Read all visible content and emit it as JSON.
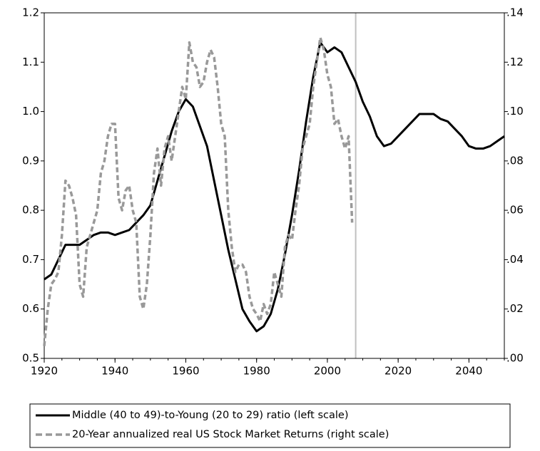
{
  "chart_data": {
    "type": "line",
    "xlim": [
      1920,
      2050
    ],
    "xticks": [
      1920,
      1940,
      1960,
      1980,
      2000,
      2020,
      2040
    ],
    "ylim": [
      0.5,
      1.2
    ],
    "yticks": [
      0.5,
      0.6,
      0.7,
      0.8,
      0.9,
      {
        "value": 1,
        "label": "1.0"
      },
      1.1,
      1.2
    ],
    "y2lim": [
      0,
      0.14
    ],
    "y2ticks": [
      {
        "value": 0,
        "label": ".00"
      },
      {
        "value": 0.02,
        "label": ".02"
      },
      {
        "value": 0.04,
        "label": ".04"
      },
      {
        "value": 0.06,
        "label": ".06"
      },
      {
        "value": 0.08,
        "label": ".08"
      },
      {
        "value": 0.1,
        "label": ".10"
      },
      {
        "value": 0.12,
        "label": ".12"
      },
      {
        "value": 0.14,
        "label": ".14"
      }
    ],
    "vline_x": 2008,
    "vline_color": "#c0c0c0",
    "series": [
      {
        "name": "Middle (40 to 49)-to-Young (20 to 29) ratio (left scale)",
        "color": "#000000",
        "dashed": false,
        "x": [
          1920,
          1922,
          1924,
          1926,
          1928,
          1930,
          1932,
          1934,
          1936,
          1938,
          1940,
          1942,
          1944,
          1946,
          1948,
          1950,
          1952,
          1954,
          1956,
          1958,
          1960,
          1962,
          1964,
          1966,
          1968,
          1970,
          1972,
          1974,
          1976,
          1978,
          1980,
          1982,
          1984,
          1986,
          1988,
          1990,
          1992,
          1994,
          1996,
          1998,
          2000,
          2002,
          2004,
          2006,
          2008,
          2010,
          2012,
          2014,
          2016,
          2018,
          2020,
          2022,
          2024,
          2026,
          2028,
          2030,
          2032,
          2034,
          2036,
          2038,
          2040,
          2042,
          2044,
          2046,
          2048,
          2050
        ],
        "values": [
          0.66,
          0.67,
          0.7,
          0.73,
          0.73,
          0.73,
          0.74,
          0.75,
          0.755,
          0.755,
          0.75,
          0.755,
          0.76,
          0.775,
          0.79,
          0.81,
          0.86,
          0.91,
          0.96,
          1.0,
          1.025,
          1.01,
          0.97,
          0.93,
          0.86,
          0.79,
          0.72,
          0.66,
          0.6,
          0.575,
          0.555,
          0.565,
          0.59,
          0.64,
          0.71,
          0.79,
          0.88,
          0.98,
          1.07,
          1.14,
          1.12,
          1.13,
          1.12,
          1.09,
          1.06,
          1.02,
          0.99,
          0.95,
          0.93,
          0.935,
          0.95,
          0.965,
          0.98,
          0.995,
          0.995,
          0.995,
          0.985,
          0.98,
          0.965,
          0.95,
          0.93,
          0.925,
          0.925,
          0.93,
          0.94,
          0.95
        ]
      },
      {
        "name": "20-Year annualized real US Stock Market Returns (right scale)",
        "color": "#999999",
        "dashed": true,
        "axis": "y2",
        "x": [
          1920,
          1921,
          1922,
          1923,
          1924,
          1925,
          1926,
          1927,
          1928,
          1929,
          1930,
          1931,
          1932,
          1933,
          1934,
          1935,
          1936,
          1937,
          1938,
          1939,
          1940,
          1941,
          1942,
          1943,
          1944,
          1945,
          1946,
          1947,
          1948,
          1949,
          1950,
          1951,
          1952,
          1953,
          1954,
          1955,
          1956,
          1957,
          1958,
          1959,
          1960,
          1961,
          1962,
          1963,
          1964,
          1965,
          1966,
          1967,
          1968,
          1969,
          1970,
          1971,
          1972,
          1973,
          1974,
          1975,
          1976,
          1977,
          1978,
          1979,
          1980,
          1981,
          1982,
          1983,
          1984,
          1985,
          1986,
          1987,
          1988,
          1989,
          1990,
          1991,
          1992,
          1993,
          1994,
          1995,
          1996,
          1997,
          1998,
          1999,
          2000,
          2001,
          2002,
          2003,
          2004,
          2005,
          2006,
          2007
        ],
        "values": [
          0.005,
          0.02,
          0.03,
          0.032,
          0.035,
          0.05,
          0.072,
          0.07,
          0.065,
          0.058,
          0.03,
          0.025,
          0.045,
          0.05,
          0.055,
          0.06,
          0.075,
          0.08,
          0.09,
          0.095,
          0.095,
          0.065,
          0.06,
          0.068,
          0.07,
          0.06,
          0.055,
          0.025,
          0.02,
          0.03,
          0.05,
          0.075,
          0.085,
          0.07,
          0.085,
          0.09,
          0.08,
          0.09,
          0.1,
          0.11,
          0.105,
          0.128,
          0.12,
          0.118,
          0.11,
          0.112,
          0.12,
          0.125,
          0.122,
          0.11,
          0.095,
          0.09,
          0.06,
          0.045,
          0.035,
          0.038,
          0.038,
          0.035,
          0.025,
          0.02,
          0.018,
          0.015,
          0.022,
          0.018,
          0.022,
          0.035,
          0.03,
          0.025,
          0.045,
          0.05,
          0.048,
          0.06,
          0.07,
          0.085,
          0.09,
          0.095,
          0.11,
          0.12,
          0.13,
          0.125,
          0.115,
          0.11,
          0.095,
          0.097,
          0.09,
          0.085,
          0.09,
          0.055
        ]
      }
    ]
  }
}
